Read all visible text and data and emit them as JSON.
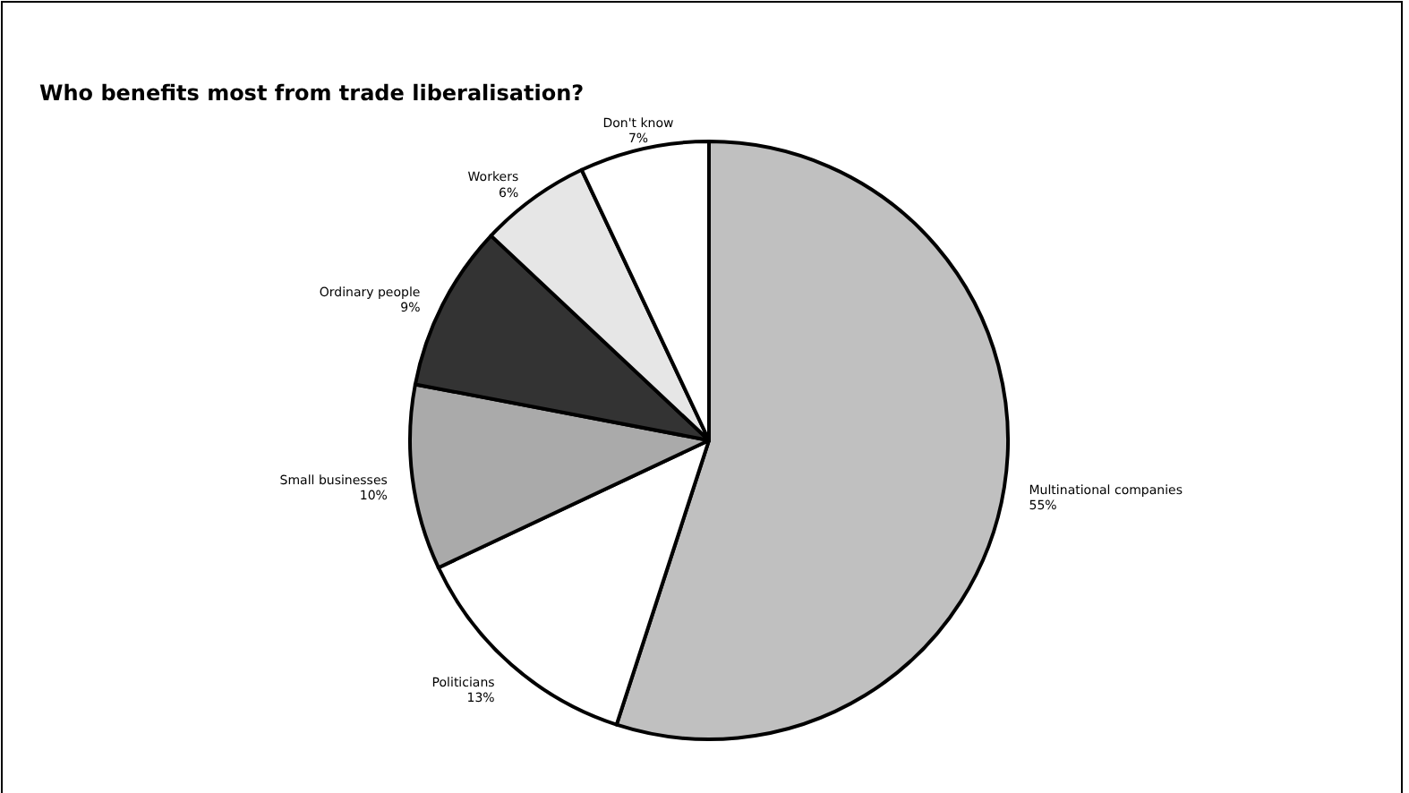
{
  "chart_data": {
    "type": "pie",
    "title": "Who benefits most from trade liberalisation?",
    "categories": [
      "Multinational companies",
      "Politicians",
      "Small businesses",
      "Ordinary people",
      "Workers",
      "Don't know"
    ],
    "values": [
      55,
      13,
      10,
      9,
      6,
      7
    ],
    "value_labels": [
      "55%",
      "13%",
      "10%",
      "9%",
      "6%",
      "7%"
    ],
    "colors": [
      "#c0c0c0",
      "#ffffff",
      "#aaaaaa",
      "#333333",
      "#e6e6e6",
      "#ffffff"
    ]
  }
}
